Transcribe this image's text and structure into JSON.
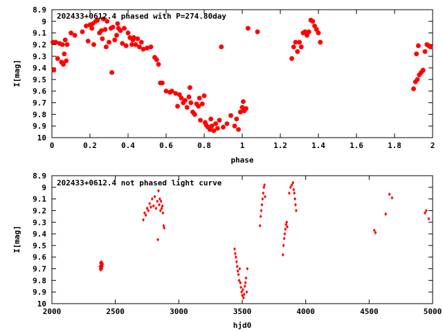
{
  "colors": {
    "points": "#ff0000",
    "axes": "#000000",
    "background": "#ffffff"
  },
  "chart_data": [
    {
      "type": "scatter",
      "title": "202433+0612.4 phased with P=274.80day",
      "xlabel": "phase",
      "ylabel": "I[mag]",
      "xlim": [
        0,
        2
      ],
      "ylim": [
        10,
        8.9
      ],
      "y_inverted": true,
      "grid": false,
      "marker": "star",
      "xticks": [
        0,
        0.2,
        0.4,
        0.6,
        0.8,
        1,
        1.2,
        1.4,
        1.6,
        1.8,
        2
      ],
      "xtick_labels": [
        "0",
        "0.2",
        "0.4",
        "0.6",
        "0.8",
        "1",
        "1.2",
        "1.4",
        "1.6",
        "1.8",
        "2"
      ],
      "yticks": [
        8.9,
        9,
        9.1,
        9.2,
        9.3,
        9.4,
        9.5,
        9.6,
        9.7,
        9.8,
        9.9,
        10
      ],
      "ytick_labels": [
        "8.9",
        "9",
        "9.1",
        "9.2",
        "9.3",
        "9.4",
        "9.5",
        "9.6",
        "9.7",
        "9.8",
        "9.9",
        "10"
      ],
      "points": [
        [
          0.005,
          9.18
        ],
        [
          0.01,
          9.42
        ],
        [
          0.02,
          9.18
        ],
        [
          0.03,
          9.32
        ],
        [
          0.04,
          9.19
        ],
        [
          0.05,
          9.35
        ],
        [
          0.055,
          9.2
        ],
        [
          0.06,
          9.37
        ],
        [
          0.065,
          9.28
        ],
        [
          0.07,
          9.16
        ],
        [
          0.075,
          9.34
        ],
        [
          0.08,
          9.2
        ],
        [
          0.1,
          9.1
        ],
        [
          0.12,
          9.12
        ],
        [
          0.16,
          9.09
        ],
        [
          0.18,
          9.04
        ],
        [
          0.19,
          9.17
        ],
        [
          0.2,
          9.03
        ],
        [
          0.21,
          9.06
        ],
        [
          0.215,
          9.02
        ],
        [
          0.22,
          9.2
        ],
        [
          0.23,
          9.0
        ],
        [
          0.24,
          8.99
        ],
        [
          0.25,
          9.1
        ],
        [
          0.26,
          9.08
        ],
        [
          0.265,
          9.15
        ],
        [
          0.27,
          8.98
        ],
        [
          0.28,
          9.07
        ],
        [
          0.285,
          9.22
        ],
        [
          0.29,
          9.0
        ],
        [
          0.3,
          9.18
        ],
        [
          0.31,
          9.06
        ],
        [
          0.315,
          9.44
        ],
        [
          0.32,
          9.05
        ],
        [
          0.33,
          9.16
        ],
        [
          0.34,
          9.12
        ],
        [
          0.345,
          9.02
        ],
        [
          0.35,
          9.06
        ],
        [
          0.36,
          9.08
        ],
        [
          0.37,
          9.19
        ],
        [
          0.38,
          9.06
        ],
        [
          0.39,
          9.21
        ],
        [
          0.4,
          9.1
        ],
        [
          0.41,
          9.14
        ],
        [
          0.42,
          9.2
        ],
        [
          0.425,
          9.16
        ],
        [
          0.43,
          9.14
        ],
        [
          0.44,
          9.2
        ],
        [
          0.45,
          9.15
        ],
        [
          0.46,
          9.22
        ],
        [
          0.47,
          9.18
        ],
        [
          0.48,
          9.24
        ],
        [
          0.5,
          9.23
        ],
        [
          0.52,
          9.22
        ],
        [
          0.54,
          9.31
        ],
        [
          0.55,
          9.33
        ],
        [
          0.56,
          9.37
        ],
        [
          0.57,
          9.53
        ],
        [
          0.58,
          9.53
        ],
        [
          0.6,
          9.6
        ],
        [
          0.62,
          9.61
        ],
        [
          0.63,
          9.6
        ],
        [
          0.65,
          9.62
        ],
        [
          0.66,
          9.73
        ],
        [
          0.67,
          9.63
        ],
        [
          0.68,
          9.66
        ],
        [
          0.69,
          9.7
        ],
        [
          0.7,
          9.68
        ],
        [
          0.71,
          9.74
        ],
        [
          0.72,
          9.65
        ],
        [
          0.725,
          9.57
        ],
        [
          0.73,
          9.7
        ],
        [
          0.74,
          9.78
        ],
        [
          0.75,
          9.8
        ],
        [
          0.76,
          9.71
        ],
        [
          0.77,
          9.73
        ],
        [
          0.775,
          9.66
        ],
        [
          0.78,
          9.85
        ],
        [
          0.79,
          9.71
        ],
        [
          0.8,
          9.64
        ],
        [
          0.805,
          9.87
        ],
        [
          0.81,
          9.89
        ],
        [
          0.82,
          9.91
        ],
        [
          0.83,
          9.93
        ],
        [
          0.835,
          9.84
        ],
        [
          0.84,
          9.9
        ],
        [
          0.85,
          9.94
        ],
        [
          0.86,
          9.88
        ],
        [
          0.87,
          9.92
        ],
        [
          0.88,
          9.85
        ],
        [
          0.89,
          9.22
        ],
        [
          0.9,
          9.91
        ],
        [
          0.92,
          9.88
        ],
        [
          0.94,
          9.81
        ],
        [
          0.96,
          9.9
        ],
        [
          0.97,
          9.84
        ],
        [
          0.98,
          9.93
        ],
        [
          0.99,
          9.78
        ],
        [
          1.0,
          9.74
        ],
        [
          1.005,
          9.69
        ],
        [
          1.01,
          9.77
        ],
        [
          1.02,
          9.75
        ],
        [
          1.03,
          9.06
        ],
        [
          1.08,
          9.09
        ],
        [
          1.26,
          9.32
        ],
        [
          1.27,
          9.22
        ],
        [
          1.28,
          9.18
        ],
        [
          1.29,
          9.26
        ],
        [
          1.3,
          9.18
        ],
        [
          1.31,
          9.22
        ],
        [
          1.32,
          9.1
        ],
        [
          1.33,
          9.09
        ],
        [
          1.34,
          9.12
        ],
        [
          1.35,
          9.09
        ],
        [
          1.36,
          8.99
        ],
        [
          1.37,
          9.0
        ],
        [
          1.38,
          9.04
        ],
        [
          1.39,
          9.07
        ],
        [
          1.4,
          9.1
        ],
        [
          1.41,
          9.18
        ],
        [
          1.9,
          9.58
        ],
        [
          1.91,
          9.52
        ],
        [
          1.92,
          9.5
        ],
        [
          1.93,
          9.46
        ],
        [
          1.94,
          9.44
        ],
        [
          1.95,
          9.42
        ],
        [
          1.96,
          9.26
        ],
        [
          1.97,
          9.2
        ],
        [
          1.98,
          9.21
        ],
        [
          1.99,
          9.22
        ],
        [
          1.925,
          9.21
        ],
        [
          1.915,
          9.28
        ]
      ]
    },
    {
      "type": "scatter",
      "title": "202433+0612.4 not phased light curve",
      "xlabel": "hjd0",
      "ylabel": "I[mag]",
      "xlim": [
        2000,
        5000
      ],
      "ylim": [
        10,
        8.9
      ],
      "y_inverted": true,
      "grid": false,
      "marker": "diamond",
      "xticks": [
        2000,
        2500,
        3000,
        3500,
        4000,
        4500,
        5000
      ],
      "xtick_labels": [
        "2000",
        "2500",
        "3000",
        "3500",
        "4000",
        "4500",
        "5000"
      ],
      "yticks": [
        8.9,
        9,
        9.1,
        9.2,
        9.3,
        9.4,
        9.5,
        9.6,
        9.7,
        9.8,
        9.9,
        10
      ],
      "ytick_labels": [
        "8.9",
        "9",
        "9.1",
        "9.2",
        "9.3",
        "9.4",
        "9.5",
        "9.6",
        "9.7",
        "9.8",
        "9.9",
        "10"
      ],
      "points": [
        [
          2378,
          9.68
        ],
        [
          2380,
          9.7
        ],
        [
          2382,
          9.65
        ],
        [
          2384,
          9.71
        ],
        [
          2386,
          9.67
        ],
        [
          2388,
          9.64
        ],
        [
          2390,
          9.69
        ],
        [
          2392,
          9.66
        ],
        [
          2394,
          9.7
        ],
        [
          2396,
          9.65
        ],
        [
          2398,
          9.68
        ],
        [
          2400,
          9.66
        ],
        [
          2720,
          9.28
        ],
        [
          2730,
          9.22
        ],
        [
          2740,
          9.24
        ],
        [
          2750,
          9.18
        ],
        [
          2760,
          9.2
        ],
        [
          2770,
          9.14
        ],
        [
          2780,
          9.17
        ],
        [
          2790,
          9.1
        ],
        [
          2800,
          9.16
        ],
        [
          2810,
          9.08
        ],
        [
          2820,
          9.18
        ],
        [
          2830,
          9.12
        ],
        [
          2835,
          9.45
        ],
        [
          2840,
          9.03
        ],
        [
          2845,
          9.15
        ],
        [
          2850,
          9.1
        ],
        [
          2855,
          9.2
        ],
        [
          2860,
          9.12
        ],
        [
          2865,
          9.18
        ],
        [
          2870,
          9.16
        ],
        [
          2875,
          9.22
        ],
        [
          2880,
          9.33
        ],
        [
          2885,
          9.35
        ],
        [
          3440,
          9.53
        ],
        [
          3445,
          9.57
        ],
        [
          3450,
          9.6
        ],
        [
          3455,
          9.64
        ],
        [
          3460,
          9.68
        ],
        [
          3465,
          9.72
        ],
        [
          3470,
          9.75
        ],
        [
          3475,
          9.8
        ],
        [
          3480,
          9.7
        ],
        [
          3485,
          9.82
        ],
        [
          3490,
          9.86
        ],
        [
          3495,
          9.9
        ],
        [
          3500,
          9.93
        ],
        [
          3505,
          9.88
        ],
        [
          3510,
          9.95
        ],
        [
          3515,
          9.92
        ],
        [
          3520,
          9.85
        ],
        [
          3525,
          9.82
        ],
        [
          3530,
          9.78
        ],
        [
          3535,
          9.9
        ],
        [
          3540,
          9.7
        ],
        [
          3640,
          9.33
        ],
        [
          3645,
          9.25
        ],
        [
          3650,
          9.2
        ],
        [
          3655,
          9.15
        ],
        [
          3660,
          9.1
        ],
        [
          3665,
          9.05
        ],
        [
          3670,
          9.0
        ],
        [
          3675,
          8.98
        ],
        [
          3680,
          9.08
        ],
        [
          3820,
          9.58
        ],
        [
          3825,
          9.5
        ],
        [
          3830,
          9.44
        ],
        [
          3835,
          9.4
        ],
        [
          3840,
          9.36
        ],
        [
          3845,
          9.32
        ],
        [
          3850,
          9.3
        ],
        [
          3855,
          9.34
        ],
        [
          3870,
          9.05
        ],
        [
          3880,
          9.0
        ],
        [
          3890,
          8.98
        ],
        [
          3900,
          8.96
        ],
        [
          3905,
          9.02
        ],
        [
          3910,
          9.05
        ],
        [
          3915,
          9.1
        ],
        [
          3920,
          9.15
        ],
        [
          3925,
          9.2
        ],
        [
          4540,
          9.37
        ],
        [
          4550,
          9.39
        ],
        [
          4630,
          9.23
        ],
        [
          4660,
          9.06
        ],
        [
          4680,
          9.09
        ],
        [
          4940,
          9.22
        ],
        [
          4950,
          9.2
        ],
        [
          4970,
          9.27
        ]
      ]
    }
  ]
}
